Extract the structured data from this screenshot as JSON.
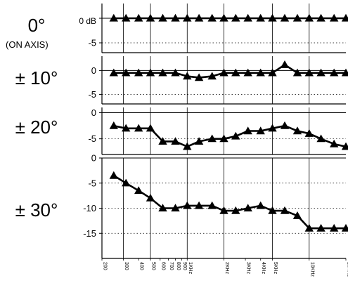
{
  "chart_data": {
    "type": "line",
    "x_scale": "log",
    "grid": true,
    "x_tick_labels": [
      "200",
      "300",
      "400",
      "500",
      "600",
      "700",
      "800",
      "900",
      "1KHz",
      "2KHz",
      "3KHz",
      "4KHz",
      "5KHz",
      "10KHz",
      "20KHz"
    ],
    "x_tick_values": [
      200,
      300,
      400,
      500,
      600,
      700,
      800,
      900,
      1000,
      2000,
      3000,
      4000,
      5000,
      10000,
      20000
    ],
    "x_gridlines": [
      300,
      500,
      1000,
      2000,
      5000,
      10000
    ],
    "x_points": [
      250,
      315,
      400,
      500,
      630,
      800,
      1000,
      1250,
      1600,
      2000,
      2500,
      3150,
      4000,
      5000,
      6300,
      8000,
      10000,
      12500,
      16000,
      20000
    ],
    "panels": [
      {
        "angle_label": "0°",
        "angle_sublabel": "(ON AXIS)",
        "unit_label": "0 dB",
        "y_ticks": [
          {
            "value": 0,
            "label": ""
          },
          {
            "value": -5,
            "label": "-5"
          }
        ],
        "ylim": [
          -7,
          3
        ],
        "values": [
          0,
          0,
          0,
          0,
          0,
          0,
          0,
          0,
          0,
          0,
          0,
          0,
          0,
          0,
          0,
          0,
          0,
          0,
          0,
          0
        ]
      },
      {
        "angle_label": "± 10°",
        "angle_sublabel": "",
        "unit_label": "",
        "y_ticks": [
          {
            "value": 0,
            "label": "0"
          },
          {
            "value": -5,
            "label": "-5"
          }
        ],
        "ylim": [
          -7,
          3
        ],
        "values": [
          -0.5,
          -0.5,
          -0.5,
          -0.5,
          -0.5,
          -0.5,
          -1.2,
          -1.5,
          -1.2,
          -0.5,
          -0.5,
          -0.5,
          -0.5,
          -0.5,
          1.2,
          -0.5,
          -0.5,
          -0.5,
          -0.5,
          -0.5
        ]
      },
      {
        "angle_label": "± 20°",
        "angle_sublabel": "",
        "unit_label": "",
        "y_ticks": [
          {
            "value": 0,
            "label": "0"
          },
          {
            "value": -5,
            "label": "-5"
          }
        ],
        "ylim": [
          -8,
          1
        ],
        "values": [
          -2.5,
          -3,
          -3,
          -3,
          -5.5,
          -5.5,
          -6.5,
          -5.5,
          -5,
          -5,
          -4.5,
          -3.5,
          -3.5,
          -3,
          -2.5,
          -3.5,
          -4,
          -5,
          -6,
          -6.5
        ]
      },
      {
        "angle_label": "± 30°",
        "angle_sublabel": "",
        "unit_label": "",
        "y_ticks": [
          {
            "value": 0,
            "label": "0"
          },
          {
            "value": -5,
            "label": "-5"
          },
          {
            "value": -10,
            "label": "-10"
          },
          {
            "value": -15,
            "label": "-15"
          }
        ],
        "ylim": [
          -20,
          0
        ],
        "values": [
          -3.5,
          -5,
          -6.5,
          -8,
          -10,
          -10,
          -9.5,
          -9.5,
          -9.5,
          -10.5,
          -10.5,
          -10,
          -9.5,
          -10.5,
          -10.5,
          -11.5,
          -14,
          -14,
          -14,
          -14
        ]
      }
    ]
  }
}
